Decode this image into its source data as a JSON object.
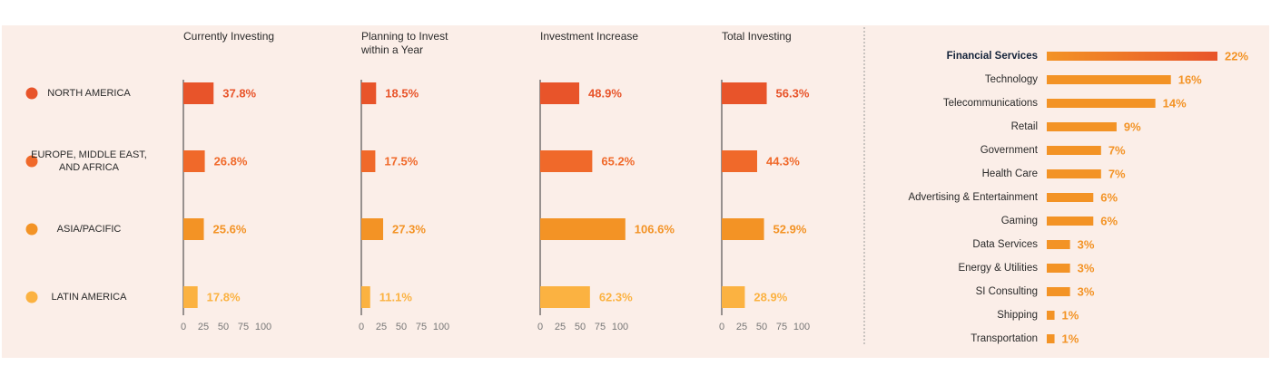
{
  "regions": {
    "categories": [
      "NORTH AMERICA",
      "EUROPE, MIDDLE EAST, AND AFRICA",
      "ASIA/PACIFIC",
      "LATIN AMERICA"
    ],
    "colors": [
      "#e8542a",
      "#f0692a",
      "#f39325",
      "#fbb241"
    ]
  },
  "chart_data": [
    {
      "type": "bar",
      "orientation": "horizontal",
      "title": "Currently Investing",
      "values": [
        37.8,
        26.8,
        25.6,
        17.8
      ],
      "value_labels": [
        "37.8%",
        "26.8%",
        "25.6%",
        "17.8%"
      ],
      "xlim": [
        0,
        100
      ],
      "xticks": [
        0,
        25,
        50,
        75,
        100
      ]
    },
    {
      "type": "bar",
      "orientation": "horizontal",
      "title": "Planning to Invest within a Year",
      "values": [
        18.5,
        17.5,
        27.3,
        11.1
      ],
      "value_labels": [
        "18.5%",
        "17.5%",
        "27.3%",
        "11.1%"
      ],
      "xlim": [
        0,
        100
      ],
      "xticks": [
        0,
        25,
        50,
        75,
        100
      ]
    },
    {
      "type": "bar",
      "orientation": "horizontal",
      "title": "Investment Increase",
      "values": [
        48.9,
        65.2,
        106.6,
        62.3
      ],
      "value_labels": [
        "48.9%",
        "65.2%",
        "106.6%",
        "62.3%"
      ],
      "xlim": [
        0,
        100
      ],
      "xticks": [
        0,
        25,
        50,
        75,
        100
      ]
    },
    {
      "type": "bar",
      "orientation": "horizontal",
      "title": "Total Investing",
      "values": [
        56.3,
        44.3,
        52.9,
        28.9
      ],
      "value_labels": [
        "56.3%",
        "44.3%",
        "52.9%",
        "28.9%"
      ],
      "xlim": [
        0,
        100
      ],
      "xticks": [
        0,
        25,
        50,
        75,
        100
      ]
    },
    {
      "type": "bar",
      "orientation": "horizontal",
      "color": "#f39325",
      "categories": [
        "Financial Services",
        "Technology",
        "Telecommunications",
        "Retail",
        "Government",
        "Health Care",
        "Advertising & Entertainment",
        "Gaming",
        "Data Services",
        "Energy & Utilities",
        "SI Consulting",
        "Shipping",
        "Transportation"
      ],
      "values": [
        22,
        16,
        14,
        9,
        7,
        7,
        6,
        6,
        3,
        3,
        3,
        1,
        1
      ],
      "value_labels": [
        "22%",
        "16%",
        "14%",
        "9%",
        "7%",
        "7%",
        "6%",
        "6%",
        "3%",
        "3%",
        "3%",
        "1%",
        "1%"
      ]
    }
  ]
}
